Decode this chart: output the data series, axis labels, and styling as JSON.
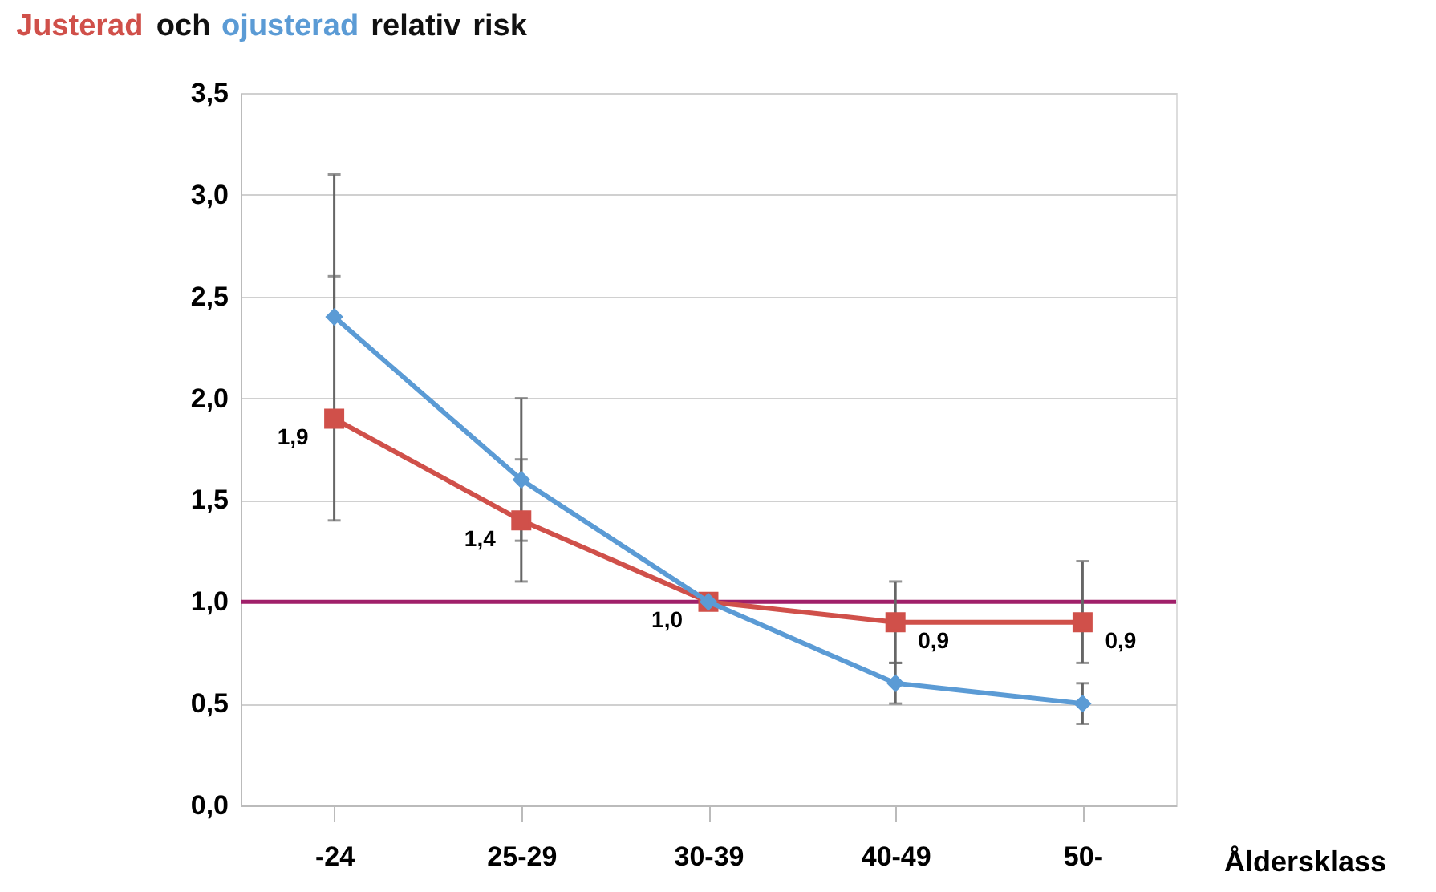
{
  "chart_data": {
    "type": "line",
    "title": "Justerad och ojusterad relativ risk",
    "xlabel": "Åldersklass",
    "categories": [
      "-24",
      "25-29",
      "30-39",
      "40-49",
      "50-"
    ],
    "series": [
      {
        "color": "#d0504a",
        "marker": "square",
        "values": [
          1.9,
          1.4,
          1.0,
          0.9,
          0.9
        ],
        "errors": [
          [
            1.4,
            2.6
          ],
          [
            1.1,
            1.7
          ],
          null,
          [
            0.7,
            1.1
          ],
          [
            0.7,
            1.2
          ]
        ],
        "value_labels": [
          "1,9",
          "1,4",
          "1,0",
          "0,9",
          "0,9"
        ]
      },
      {
        "color": "#5b9bd5",
        "marker": "diamond",
        "values": [
          2.4,
          1.6,
          1.0,
          0.6,
          0.5
        ],
        "errors": [
          [
            2.4,
            3.1
          ],
          [
            1.3,
            2.0
          ],
          null,
          [
            0.5,
            0.7
          ],
          [
            0.4,
            0.6
          ]
        ]
      }
    ],
    "ylim": [
      0,
      3.5
    ],
    "yticks": [
      {
        "value": 0,
        "label": "0,0"
      },
      {
        "value": 0.5,
        "label": "0,5"
      },
      {
        "value": 1,
        "label": "1,0"
      },
      {
        "value": 1.5,
        "label": "1,5"
      },
      {
        "value": 2,
        "label": "2,0"
      },
      {
        "value": 2.5,
        "label": "2,5"
      },
      {
        "value": 3,
        "label": "3,0"
      },
      {
        "value": 3.5,
        "label": "3,5"
      }
    ],
    "ref_lines": [
      {
        "axis": "y",
        "value": 1.0,
        "color": "#a0206a"
      }
    ],
    "grid": "y"
  }
}
